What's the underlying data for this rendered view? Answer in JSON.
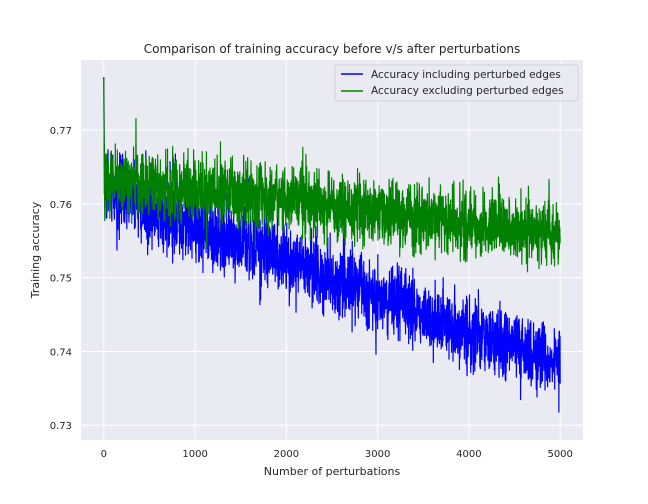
{
  "chart_data": {
    "type": "line",
    "title": "Comparison of training accuracy before v/s after perturbations",
    "xlabel": "Number of perturbations",
    "ylabel": "Training accuracy",
    "xlim": [
      -250,
      5250
    ],
    "ylim": [
      0.728,
      0.7795
    ],
    "xticks": [
      0,
      1000,
      2000,
      3000,
      4000,
      5000
    ],
    "xtick_labels": [
      "0",
      "1000",
      "2000",
      "3000",
      "4000",
      "5000"
    ],
    "yticks": [
      0.73,
      0.74,
      0.75,
      0.76,
      0.77
    ],
    "ytick_labels": [
      "0.73",
      "0.74",
      "0.75",
      "0.76",
      "0.77"
    ],
    "grid": true,
    "background": "#eaeaf2",
    "legend_position": "upper right",
    "series": [
      {
        "name": "Accuracy including perturbed edges",
        "color": "#0000ff",
        "x_range": [
          0,
          5000
        ],
        "trend": {
          "x": [
            0,
            200,
            1000,
            2000,
            3000,
            4000,
            5000
          ],
          "y": [
            0.7625,
            0.761,
            0.757,
            0.7525,
            0.7475,
            0.7425,
            0.7385
          ]
        },
        "noise_band": 0.0035,
        "observed_min": 0.73,
        "observed_max": 0.7772
      },
      {
        "name": "Accuracy excluding perturbed edges",
        "color": "#008000",
        "x_range": [
          0,
          5000
        ],
        "trend": {
          "x": [
            0,
            200,
            1000,
            2000,
            3000,
            4000,
            5000
          ],
          "y": [
            0.7635,
            0.763,
            0.762,
            0.7605,
            0.759,
            0.7575,
            0.756
          ]
        },
        "noise_band": 0.0033,
        "observed_min": 0.7485,
        "observed_max": 0.7772
      }
    ]
  }
}
